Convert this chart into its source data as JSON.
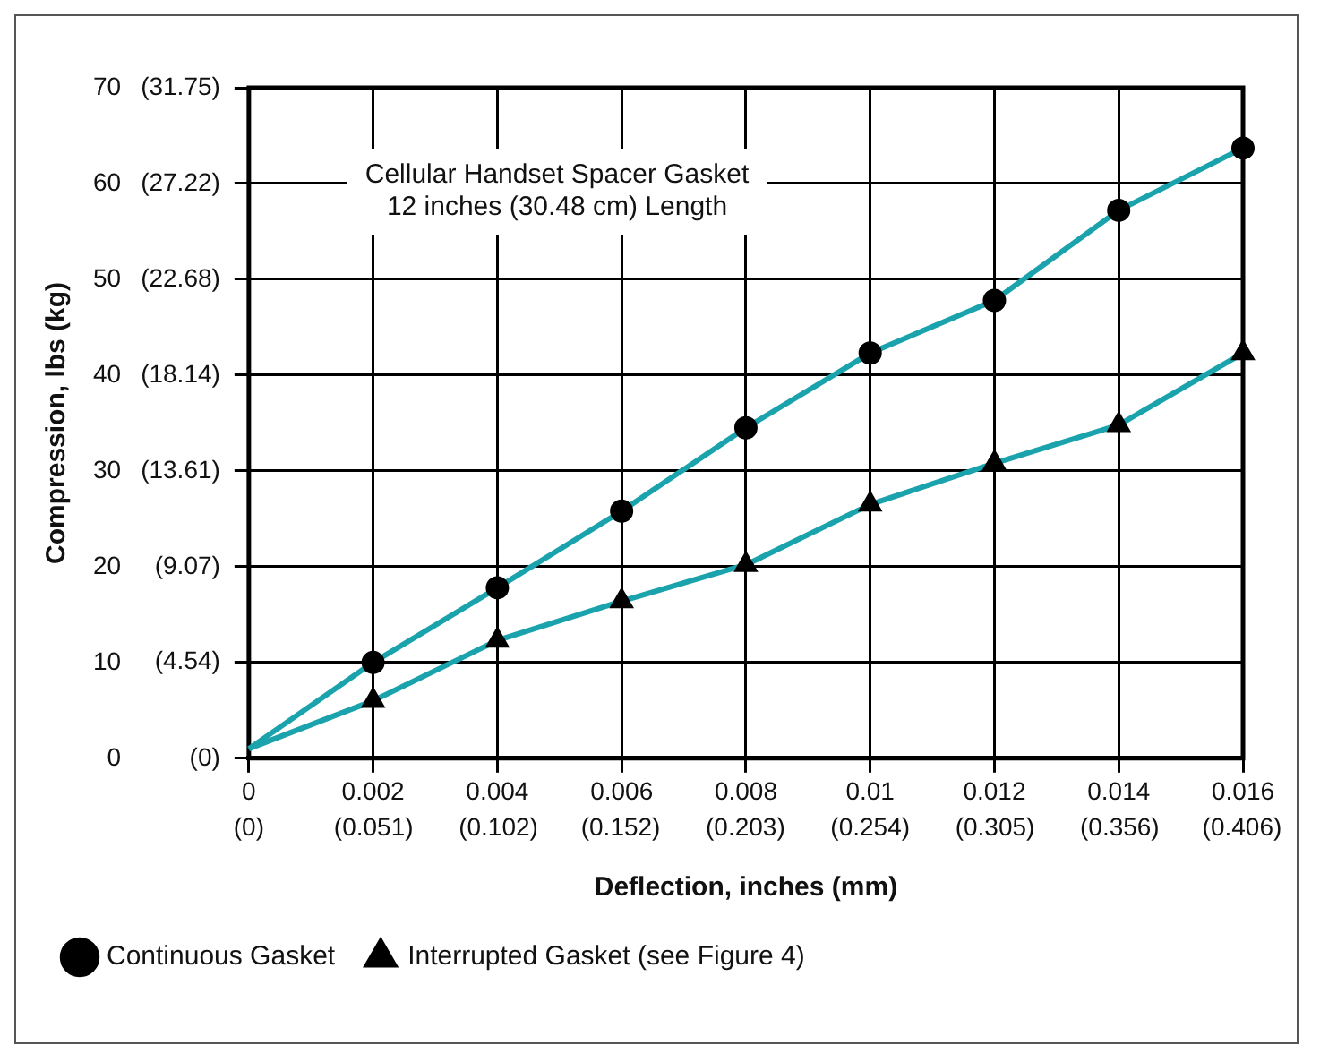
{
  "chart_data": {
    "type": "line",
    "xlabel": "Deflection, inches (mm)",
    "ylabel": "Compression, lbs (kg)",
    "annotations": [
      "Cellular Handset Spacer Gasket\n12 inches (30.48 cm) Length"
    ],
    "x": [
      0,
      0.002,
      0.004,
      0.006,
      0.008,
      0.01,
      0.012,
      0.014,
      0.016
    ],
    "series": [
      {
        "name": "Continuous Gasket",
        "color": "#1aa3ad",
        "marker": "circle",
        "values": [
          1,
          10,
          17.8,
          25.8,
          34.5,
          42.3,
          47.8,
          57.2,
          63.7
        ]
      },
      {
        "name": "Interrupted Gasket (see Figure 4)",
        "color": "#1aa3ad",
        "marker": "triangle",
        "values": [
          1,
          6,
          12.3,
          16.4,
          20.2,
          26.5,
          30.8,
          34.8,
          42.3
        ]
      }
    ],
    "xlim": [
      0,
      0.016
    ],
    "xticks": [
      0,
      0.002,
      0.004,
      0.006,
      0.008,
      0.01,
      0.012,
      0.014,
      0.016
    ],
    "x2lim": [
      0,
      0.4064
    ],
    "x2ticks": [
      {
        "value": 0,
        "label": "(0)"
      },
      {
        "value": 0.051,
        "label": "(0.051)"
      },
      {
        "value": 0.102,
        "label": "(0.102)"
      },
      {
        "value": 0.152,
        "label": "(0.152)"
      },
      {
        "value": 0.203,
        "label": "(0.203)"
      },
      {
        "value": 0.254,
        "label": "(0.254)"
      },
      {
        "value": 0.305,
        "label": "(0.305)"
      },
      {
        "value": 0.356,
        "label": "(0.356)"
      },
      {
        "value": 0.406,
        "label": "(0.406)"
      }
    ],
    "ylim": [
      0,
      70
    ],
    "yticks": [
      0,
      10,
      20,
      30,
      40,
      50,
      60,
      70
    ],
    "y2lim": [
      0,
      31.75
    ],
    "y2ticks": [
      {
        "value": 0,
        "label": "(0)"
      },
      {
        "value": 4.54,
        "label": "(4.54)"
      },
      {
        "value": 9.07,
        "label": "(9.07)"
      },
      {
        "value": 13.61,
        "label": "(13.61)"
      },
      {
        "value": 18.14,
        "label": "(18.14)"
      },
      {
        "value": 22.68,
        "label": "(22.68)"
      },
      {
        "value": 27.22,
        "label": "(27.22)"
      },
      {
        "value": 31.75,
        "label": "(31.75)"
      }
    ],
    "grid": true,
    "legend": "bottom left",
    "line_style": "solid"
  }
}
